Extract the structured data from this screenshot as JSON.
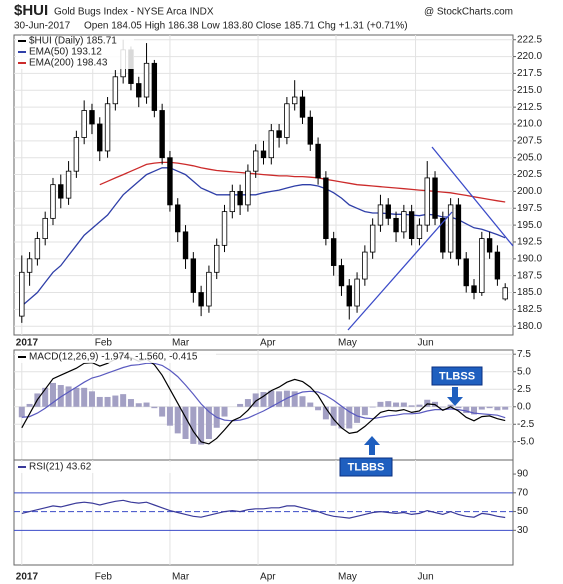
{
  "chart_data": [
    {
      "type": "candlestick",
      "title": "$HUI",
      "subtitle": "Gold Bugs Index - NYSE Arca INDX",
      "date": "30-Jun-2017",
      "quote": "Open 184.05  High 186.38  Low 183.80  Close 185.71  Chg +1.31 (+0.71%)",
      "source": "@ StockCharts.com",
      "name": "$HUI (Daily) 185.71",
      "color": "#000000",
      "ohlc": [
        [
          181.5,
          190.5,
          180.5,
          188
        ],
        [
          188,
          191,
          186,
          190
        ],
        [
          190,
          194,
          189,
          193
        ],
        [
          193,
          197,
          192,
          196
        ],
        [
          196,
          202,
          195,
          201
        ],
        [
          201,
          202.5,
          197.5,
          199
        ],
        [
          199,
          204.5,
          198,
          203
        ],
        [
          203,
          209,
          202,
          208
        ],
        [
          208,
          213.5,
          207,
          212
        ],
        [
          212,
          213,
          208.5,
          210
        ],
        [
          210,
          211,
          204.5,
          206
        ],
        [
          206,
          214,
          205,
          213
        ],
        [
          213,
          218,
          212,
          217
        ],
        [
          217,
          222.5,
          216,
          221
        ],
        [
          221,
          221.5,
          215,
          216
        ],
        [
          216,
          217,
          212.5,
          214
        ],
        [
          214,
          222,
          213,
          219
        ],
        [
          219,
          219.5,
          211,
          212
        ],
        [
          212,
          213,
          204,
          205
        ],
        [
          205,
          206,
          197,
          198
        ],
        [
          198,
          199,
          192.5,
          194
        ],
        [
          194,
          195,
          188.5,
          190
        ],
        [
          190,
          191,
          183.5,
          185
        ],
        [
          185,
          186,
          181.5,
          183
        ],
        [
          183,
          189,
          182,
          188
        ],
        [
          188,
          193,
          187,
          192
        ],
        [
          192,
          198,
          191,
          197
        ],
        [
          197,
          201,
          196,
          200
        ],
        [
          200,
          201,
          196.5,
          198
        ],
        [
          198,
          204,
          197,
          203
        ],
        [
          203,
          207,
          202,
          206
        ],
        [
          206,
          207.5,
          204,
          205
        ],
        [
          205,
          210,
          204,
          209
        ],
        [
          209,
          210,
          206.5,
          208
        ],
        [
          208,
          214,
          207,
          213
        ],
        [
          213,
          216.5,
          212,
          214
        ],
        [
          214,
          215,
          210,
          211
        ],
        [
          211,
          212,
          206,
          207
        ],
        [
          207,
          208,
          201,
          202
        ],
        [
          202,
          203,
          192,
          193
        ],
        [
          193,
          194,
          187.5,
          189
        ],
        [
          189,
          190,
          184.5,
          186
        ],
        [
          186,
          187,
          181,
          183
        ],
        [
          183,
          188,
          182,
          187
        ],
        [
          187,
          192,
          186,
          191
        ],
        [
          191,
          196,
          190,
          195
        ],
        [
          195,
          199.5,
          194,
          198
        ],
        [
          198,
          199,
          195,
          196
        ],
        [
          196,
          197,
          192.5,
          194
        ],
        [
          194,
          198,
          193,
          197
        ],
        [
          197,
          198,
          192,
          193
        ],
        [
          193,
          196,
          192,
          195
        ],
        [
          195,
          204.5,
          194,
          202
        ],
        [
          202,
          203,
          195,
          196
        ],
        [
          196,
          197,
          190,
          191
        ],
        [
          191,
          199,
          190,
          198
        ],
        [
          198,
          199,
          189,
          190
        ],
        [
          190,
          191,
          185,
          186
        ],
        [
          186,
          187,
          184,
          185
        ],
        [
          185,
          194,
          184.5,
          193
        ],
        [
          193,
          194,
          190,
          191
        ],
        [
          191,
          192,
          186,
          187
        ],
        [
          184.05,
          186.38,
          183.8,
          185.71
        ]
      ],
      "series": [
        {
          "name": "EMA(50) 193.12",
          "color": "#2f3fa8",
          "values": [
            183,
            184,
            185,
            186.5,
            188,
            189,
            190.5,
            192,
            193.5,
            194.5,
            195.5,
            196.5,
            198,
            199.5,
            200.5,
            201.5,
            202.5,
            203,
            203.5,
            203.5,
            203,
            202.5,
            201.5,
            200.5,
            200,
            199.5,
            199.5,
            199.5,
            199.5,
            199.5,
            199.5,
            199.8,
            200,
            200.2,
            200.5,
            200.8,
            201,
            201,
            200.8,
            200.4,
            199.8,
            199,
            198,
            197.5,
            197,
            196.8,
            196.8,
            196.7,
            196.6,
            196.6,
            196.5,
            196.4,
            196.6,
            196.5,
            196.2,
            196.2,
            195.8,
            195.2,
            194.6,
            194.4,
            194,
            193.6,
            193.12
          ]
        },
        {
          "name": "EMA(200) 198.43",
          "color": "#cc2b2b",
          "values": [
            null,
            null,
            null,
            null,
            null,
            null,
            null,
            null,
            null,
            null,
            201,
            201.5,
            202,
            202.5,
            203,
            203.5,
            204,
            204.2,
            204.3,
            204.3,
            204.2,
            204,
            203.8,
            203.5,
            203.3,
            203.1,
            203,
            202.9,
            202.8,
            202.7,
            202.6,
            202.5,
            202.4,
            202.3,
            202.3,
            202.2,
            202.2,
            202.1,
            202,
            201.8,
            201.6,
            201.4,
            201.2,
            201,
            200.9,
            200.8,
            200.7,
            200.6,
            200.5,
            200.4,
            200.3,
            200.2,
            200.1,
            200,
            199.9,
            199.8,
            199.6,
            199.4,
            199.2,
            199,
            198.8,
            198.6,
            198.43
          ]
        }
      ],
      "xlim": [
        -1,
        63
      ],
      "xticks": [
        {
          "value": 0,
          "label": "2017"
        },
        {
          "value": 9.1,
          "label": "Feb"
        },
        {
          "value": 19,
          "label": "Mar"
        },
        {
          "value": 30.3,
          "label": "Apr"
        },
        {
          "value": 40.3,
          "label": "May"
        },
        {
          "value": 50.5,
          "label": "Jun"
        }
      ],
      "ylim": [
        178.7,
        223.2
      ],
      "yticks": [
        {
          "value": 180,
          "label": "180.0"
        },
        182.5,
        {
          "value": 185,
          "label": "185.0"
        },
        187.5,
        {
          "value": 190,
          "label": "190.0"
        },
        192.5,
        {
          "value": 195,
          "label": "195.0"
        },
        197.5,
        {
          "value": 200,
          "label": "200.0"
        },
        202.5,
        {
          "value": 205,
          "label": "205.0"
        },
        207.5,
        {
          "value": 210,
          "label": "210.0"
        },
        212.5,
        {
          "value": 215,
          "label": "215.0"
        },
        217.5,
        {
          "value": 220,
          "label": "220.0"
        },
        222.5
      ],
      "grid": true
    },
    {
      "type": "line",
      "title": "MACD(12,26,9) -1.974, -1.560, -0.415",
      "series": [
        {
          "color": "#a3a0c4",
          "style": "histogram",
          "values": [
            -1.5,
            0.4,
            1.9,
            2.7,
            3.4,
            3.1,
            2.9,
            2.7,
            2.7,
            2.2,
            1.4,
            1.4,
            1.6,
            1.8,
            1.1,
            0.5,
            0.6,
            -0.2,
            -1.4,
            -2.7,
            -3.8,
            -4.6,
            -5.3,
            -5.4,
            -4.6,
            -3,
            -1.4,
            0,
            0.4,
            1.1,
            1.9,
            2.1,
            2.3,
            2.2,
            2.3,
            2.2,
            1.5,
            0.6,
            -0.5,
            -1.8,
            -2.7,
            -3.1,
            -3.1,
            -2.3,
            -1.2,
            -0.1,
            0.7,
            0.8,
            0.6,
            0.6,
            0.2,
            0.3,
            1,
            0.7,
            -0.1,
            0.3,
            -0.2,
            -0.9,
            -1.1,
            -0.4,
            -0.2,
            -0.5,
            -0.415
          ]
        },
        {
          "color": "#5a5ac0",
          "values": [
            -1.5,
            -1.4,
            -0.9,
            -0.2,
            0.6,
            1.4,
            2.1,
            2.8,
            3.5,
            4.1,
            4.4,
            4.8,
            5.2,
            5.6,
            5.9,
            6,
            6.2,
            6.2,
            5.9,
            5.2,
            4.3,
            3.1,
            1.8,
            0.4,
            -0.7,
            -1.5,
            -1.9,
            -2,
            -1.9,
            -1.6,
            -1.1,
            -0.6,
            0,
            0.6,
            1.2,
            1.7,
            2.1,
            2.2,
            2.1,
            1.6,
            0.9,
            0.1,
            -0.7,
            -1.3,
            -1.6,
            -1.7,
            -1.5,
            -1.3,
            -1.2,
            -1,
            -1,
            -0.9,
            -0.6,
            -0.4,
            -0.4,
            -0.3,
            -0.4,
            -0.6,
            -0.9,
            -1,
            -1.1,
            -1.2,
            -1.56
          ]
        },
        {
          "color": "#000000",
          "values": [
            -3,
            -1,
            1,
            2.5,
            4,
            4.5,
            5,
            5.5,
            6.2,
            6.3,
            5.8,
            6.2,
            6.8,
            7.4,
            7,
            6.5,
            6.8,
            6,
            4.5,
            2.5,
            0.5,
            -1.5,
            -3.5,
            -5,
            -5.3,
            -4.5,
            -3.3,
            -2,
            -1.5,
            -0.5,
            0.8,
            1.5,
            2.3,
            2.8,
            3.5,
            3.9,
            3.6,
            2.8,
            1.6,
            -0.2,
            -1.8,
            -3,
            -3.8,
            -3.6,
            -2.8,
            -1.8,
            -0.8,
            -0.5,
            -0.6,
            -0.4,
            -0.8,
            -0.6,
            0.4,
            0.3,
            -0.5,
            0,
            -0.6,
            -1.5,
            -2,
            -1.4,
            -1.3,
            -1.7,
            -1.974
          ]
        }
      ],
      "annotations": [
        "TLBSS",
        "TLBBS"
      ],
      "ylim": [
        -7.6,
        8.1
      ],
      "yticks": [
        {
          "value": -5,
          "label": "-5.0"
        },
        -2.5,
        {
          "value": 0,
          "label": "0.0"
        },
        2.5,
        {
          "value": 5,
          "label": "5.0"
        },
        7.5
      ],
      "grid": true
    },
    {
      "type": "line",
      "title": "RSI(21) 43.62",
      "series": [
        {
          "color": "#3a3a9a",
          "values": [
            48,
            50,
            52,
            54,
            56,
            55,
            57,
            59,
            60,
            59,
            57,
            59,
            61,
            62,
            60,
            59,
            60,
            57,
            54,
            51,
            49,
            47,
            45,
            44,
            46,
            48,
            50,
            51,
            50,
            52,
            53,
            53,
            54,
            54,
            56,
            56,
            54,
            52,
            50,
            47,
            45,
            44,
            43,
            45,
            47,
            49,
            50,
            49,
            48,
            49,
            47,
            48,
            51,
            49,
            47,
            50,
            47,
            45,
            44,
            48,
            47,
            45,
            43.62
          ]
        }
      ],
      "ylim": [
        -7,
        105
      ],
      "yticks": [
        30,
        50,
        70,
        90
      ],
      "reference_lines": [
        30,
        50,
        70
      ],
      "grid": false
    }
  ]
}
